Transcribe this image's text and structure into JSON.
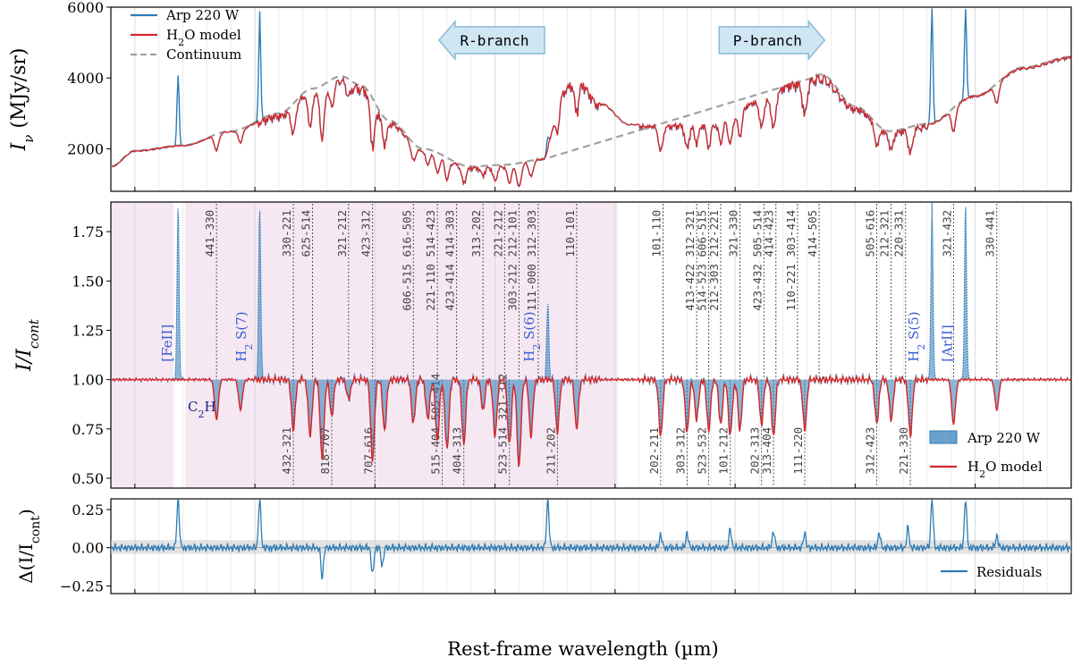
{
  "figure": {
    "xlabel": "Rest-frame wavelength (µm)",
    "xlim": [
      5.2,
      7.2
    ],
    "xticks": [
      "5.25",
      "5.50",
      "5.75",
      "6.00",
      "6.25",
      "6.50",
      "6.75",
      "7.00"
    ],
    "xtick_values": [
      5.25,
      5.5,
      5.75,
      6.0,
      6.25,
      6.5,
      6.75,
      7.0
    ],
    "colors": {
      "data": "#2c7bb6",
      "model": "#d62728",
      "continuum": "#a0a0a0",
      "shade": "#f6e8f3",
      "arrow_fill": "#cfe6f3",
      "arrow_edge": "#8ab8d4",
      "label_blue": "#3a5bd0"
    }
  },
  "chart_data": [
    {
      "type": "line",
      "panel": "top",
      "ylabel_main": "I",
      "ylabel_sub": "ν",
      "ylabel_unit": "(MJy/sr)",
      "ylim": [
        800,
        6000
      ],
      "yticks": [
        "2000",
        "4000",
        "6000"
      ],
      "ytick_values": [
        2000,
        4000,
        6000
      ],
      "legend": {
        "position": "top-left",
        "entries": [
          {
            "label": "Arp 220 W",
            "style": "data"
          },
          {
            "label_pre": "H",
            "label_sub": "2",
            "label_post": "O model",
            "style": "model"
          },
          {
            "label": "Continuum",
            "style": "continuum"
          }
        ]
      },
      "arrows": [
        {
          "label": "R-branch",
          "direction": "left",
          "x_center": 6.01
        },
        {
          "label": "P-branch",
          "direction": "right",
          "x_center": 6.56
        }
      ],
      "continuum_anchors": [
        [
          5.2,
          1500
        ],
        [
          5.25,
          1950
        ],
        [
          5.35,
          2100
        ],
        [
          5.45,
          2500
        ],
        [
          5.55,
          3000
        ],
        [
          5.62,
          3700
        ],
        [
          5.68,
          4050
        ],
        [
          5.72,
          3800
        ],
        [
          5.78,
          2800
        ],
        [
          5.85,
          2000
        ],
        [
          5.95,
          1500
        ],
        [
          6.02,
          1550
        ],
        [
          6.1,
          1700
        ],
        [
          6.2,
          2200
        ],
        [
          6.3,
          2600
        ],
        [
          6.4,
          2700
        ],
        [
          6.5,
          3000
        ],
        [
          6.6,
          3700
        ],
        [
          6.68,
          4100
        ],
        [
          6.75,
          3200
        ],
        [
          6.82,
          2500
        ],
        [
          6.9,
          2700
        ],
        [
          7.0,
          3500
        ],
        [
          7.1,
          4300
        ],
        [
          7.2,
          4600
        ]
      ],
      "data_anchors": [
        [
          5.2,
          1500
        ],
        [
          5.25,
          1950
        ],
        [
          5.35,
          2100
        ],
        [
          5.45,
          2500
        ],
        [
          5.55,
          3000
        ],
        [
          5.62,
          3700
        ],
        [
          5.68,
          4050
        ],
        [
          5.72,
          3800
        ],
        [
          5.78,
          2800
        ],
        [
          5.85,
          2000
        ],
        [
          5.95,
          1500
        ],
        [
          6.02,
          1550
        ],
        [
          6.1,
          1750
        ],
        [
          6.14,
          3700
        ],
        [
          6.17,
          4050
        ],
        [
          6.22,
          3300
        ],
        [
          6.28,
          2700
        ],
        [
          6.35,
          2700
        ],
        [
          6.45,
          2800
        ],
        [
          6.55,
          3400
        ],
        [
          6.62,
          3900
        ],
        [
          6.68,
          4100
        ],
        [
          6.75,
          3200
        ],
        [
          6.82,
          2500
        ],
        [
          6.9,
          2700
        ],
        [
          7.0,
          3500
        ],
        [
          7.1,
          4300
        ],
        [
          7.2,
          4600
        ]
      ],
      "emission_peaks": [
        [
          5.34,
          4100
        ],
        [
          5.51,
          5950
        ],
        [
          6.11,
          2400
        ],
        [
          6.91,
          6000
        ],
        [
          6.98,
          6000
        ]
      ]
    },
    {
      "type": "line",
      "panel": "middle",
      "ylabel_main": "I/I",
      "ylabel_sub": "cont",
      "ylim": [
        0.45,
        1.9
      ],
      "yticks": [
        "0.50",
        "0.75",
        "1.00",
        "1.25",
        "1.50",
        "1.75"
      ],
      "ytick_values": [
        0.5,
        0.75,
        1.0,
        1.25,
        1.5,
        1.75
      ],
      "legend": {
        "position": "bottom-right",
        "entries": [
          {
            "label": "Arp 220 W",
            "style": "data-fill"
          },
          {
            "label_pre": "H",
            "label_sub": "2",
            "label_post": "O model",
            "style": "model"
          }
        ]
      },
      "shaded_ranges": [
        [
          5.2,
          5.33
        ],
        [
          5.355,
          6.255
        ]
      ],
      "upper_lines": [
        {
          "x": 5.42,
          "label": "441-330"
        },
        {
          "x": 5.58,
          "label": "330-221"
        },
        {
          "x": 5.62,
          "label": "625-514"
        },
        {
          "x": 5.695,
          "label": "321-212"
        },
        {
          "x": 5.745,
          "label": "423-312"
        },
        {
          "x": 5.83,
          "label": "606-515 616-505"
        },
        {
          "x": 5.88,
          "label": "221-110 514-423"
        },
        {
          "x": 5.92,
          "label": "423-414 414-303"
        },
        {
          "x": 5.975,
          "label": "313-202"
        },
        {
          "x": 6.02,
          "label": "221-212"
        },
        {
          "x": 6.05,
          "label": "303-212 212-101"
        },
        {
          "x": 6.09,
          "label": "111-000 312-303"
        },
        {
          "x": 6.17,
          "label": "110-101"
        },
        {
          "x": 6.35,
          "label": "101-110"
        },
        {
          "x": 6.42,
          "label": "413-422 312-321"
        },
        {
          "x": 6.445,
          "label": "514-523 606-515"
        },
        {
          "x": 6.47,
          "label": "212-303 212-221"
        },
        {
          "x": 6.51,
          "label": "321-330"
        },
        {
          "x": 6.56,
          "label": "423-432 505-514"
        },
        {
          "x": 6.585,
          "label": "414-423"
        },
        {
          "x": 6.63,
          "label": "110-221 303-414"
        },
        {
          "x": 6.675,
          "label": "414-505"
        },
        {
          "x": 6.795,
          "label": "505-616"
        },
        {
          "x": 6.825,
          "label": "212-321"
        },
        {
          "x": 6.855,
          "label": "220-331"
        },
        {
          "x": 6.955,
          "label": "321-432"
        },
        {
          "x": 7.045,
          "label": "330-441"
        }
      ],
      "lower_lines": [
        {
          "x": 5.58,
          "label": "432-321"
        },
        {
          "x": 5.66,
          "label": "818-707"
        },
        {
          "x": 5.75,
          "label": "707-616"
        },
        {
          "x": 5.89,
          "label": "515-404 505-414"
        },
        {
          "x": 5.935,
          "label": "404-313"
        },
        {
          "x": 6.03,
          "label": "523-514 321-312"
        },
        {
          "x": 6.13,
          "label": "211-202"
        },
        {
          "x": 6.345,
          "label": "202-211"
        },
        {
          "x": 6.4,
          "label": "303-312"
        },
        {
          "x": 6.445,
          "label": "523-532"
        },
        {
          "x": 6.49,
          "label": "101-212"
        },
        {
          "x": 6.555,
          "label": "202-313"
        },
        {
          "x": 6.58,
          "label": "313-404"
        },
        {
          "x": 6.645,
          "label": "111-220"
        },
        {
          "x": 6.795,
          "label": "312-423"
        },
        {
          "x": 6.865,
          "label": "221-330"
        }
      ],
      "absorptions": [
        [
          5.42,
          0.8
        ],
        [
          5.47,
          0.85
        ],
        [
          5.58,
          0.75
        ],
        [
          5.615,
          0.72
        ],
        [
          5.64,
          0.6
        ],
        [
          5.66,
          0.82
        ],
        [
          5.695,
          0.9
        ],
        [
          5.745,
          0.6
        ],
        [
          5.77,
          0.75
        ],
        [
          5.83,
          0.78
        ],
        [
          5.86,
          0.8
        ],
        [
          5.88,
          0.7
        ],
        [
          5.9,
          0.65
        ],
        [
          5.935,
          0.68
        ],
        [
          5.975,
          0.85
        ],
        [
          6.0,
          0.72
        ],
        [
          6.03,
          0.68
        ],
        [
          6.05,
          0.56
        ],
        [
          6.075,
          0.72
        ],
        [
          6.13,
          0.74
        ],
        [
          6.17,
          0.76
        ],
        [
          6.345,
          0.72
        ],
        [
          6.4,
          0.74
        ],
        [
          6.42,
          0.8
        ],
        [
          6.445,
          0.75
        ],
        [
          6.47,
          0.78
        ],
        [
          6.49,
          0.72
        ],
        [
          6.51,
          0.75
        ],
        [
          6.555,
          0.78
        ],
        [
          6.58,
          0.72
        ],
        [
          6.645,
          0.75
        ],
        [
          6.795,
          0.78
        ],
        [
          6.825,
          0.8
        ],
        [
          6.865,
          0.72
        ],
        [
          6.955,
          0.78
        ],
        [
          7.045,
          0.85
        ]
      ],
      "emissions": [
        [
          5.34,
          1.9
        ],
        [
          5.51,
          1.9
        ],
        [
          6.11,
          1.4
        ],
        [
          6.91,
          1.9
        ],
        [
          6.98,
          1.9
        ]
      ],
      "species_labels": [
        {
          "x": 5.33,
          "text": "[FeII]"
        },
        {
          "x": 5.485,
          "text_pre": "H",
          "text_sub": "2",
          "text_post": " S(7)"
        },
        {
          "x": 6.085,
          "text_pre": "H",
          "text_sub": "2",
          "text_post": " S(6)"
        },
        {
          "x": 6.885,
          "text_pre": "H",
          "text_sub": "2",
          "text_post": " S(5)"
        },
        {
          "x": 6.955,
          "text": "[ArII]"
        }
      ],
      "c2h_label": {
        "pre": "C",
        "sub": "2",
        "post": "H"
      }
    },
    {
      "type": "line",
      "panel": "bottom",
      "ylabel_main": "Δ(I/I",
      "ylabel_sub": "cont",
      "ylabel_post": ")",
      "ylim": [
        -0.3,
        0.32
      ],
      "yticks": [
        "−0.25",
        "0.00",
        "0.25"
      ],
      "ytick_values": [
        -0.25,
        0.0,
        0.25
      ],
      "band": [
        -0.04,
        0.05
      ],
      "legend": {
        "position": "bottom-right",
        "entries": [
          {
            "label": "Residuals",
            "style": "data"
          }
        ]
      },
      "spikes": [
        [
          5.34,
          0.32
        ],
        [
          5.51,
          0.32
        ],
        [
          5.64,
          -0.2
        ],
        [
          5.745,
          -0.18
        ],
        [
          5.765,
          -0.12
        ],
        [
          6.11,
          0.32
        ],
        [
          6.345,
          0.09
        ],
        [
          6.4,
          0.1
        ],
        [
          6.49,
          0.12
        ],
        [
          6.58,
          0.11
        ],
        [
          6.645,
          0.1
        ],
        [
          6.8,
          0.1
        ],
        [
          6.86,
          0.13
        ],
        [
          6.91,
          0.32
        ],
        [
          6.98,
          0.32
        ],
        [
          7.045,
          0.08
        ]
      ]
    }
  ]
}
